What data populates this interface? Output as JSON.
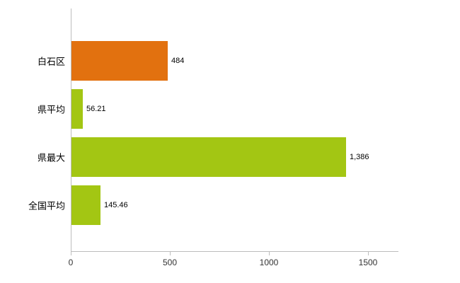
{
  "chart_data": {
    "type": "bar",
    "orientation": "horizontal",
    "title": "",
    "xlabel": "",
    "ylabel": "",
    "grid": false,
    "legend": false,
    "categories": [
      "白石区",
      "県平均",
      "県最大",
      "全国平均"
    ],
    "values": [
      484,
      56.21,
      1386,
      145.46
    ],
    "value_labels": [
      "484",
      "56.21",
      "1,386",
      "145.46"
    ],
    "bar_colors": [
      "#e2710f",
      "#a3c613",
      "#a3c613",
      "#a3c613"
    ],
    "xlim": [
      0,
      1650
    ],
    "x_ticks": [
      0,
      500,
      1000,
      1500
    ],
    "x_tick_labels": [
      "0",
      "500",
      "1000",
      "1500"
    ],
    "axis_color": "#bdbdbd",
    "background_color": "#ffffff"
  }
}
